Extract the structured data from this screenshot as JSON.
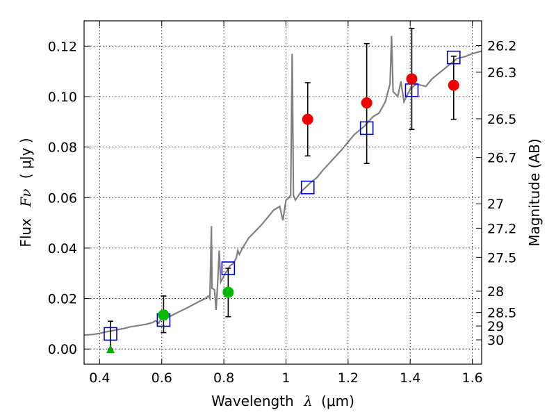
{
  "chart_data": {
    "type": "scatter",
    "xlabel_text": "Wavelength",
    "xlabel_symbol": "λ",
    "xlabel_unit": "(μm)",
    "ylabel_text": "Flux",
    "ylabel_symbol": "Fν",
    "ylabel_unit": "( μJy )",
    "y2label": "Magnitude (AB)",
    "xlim": [
      0.35,
      1.63
    ],
    "ylim": [
      -0.006,
      0.13
    ],
    "grid": true,
    "x_ticks": [
      {
        "value": 0.4,
        "label": "0.4"
      },
      {
        "value": 0.6,
        "label": "0.6"
      },
      {
        "value": 0.8,
        "label": "0.8"
      },
      {
        "value": 1.0,
        "label": "1"
      },
      {
        "value": 1.2,
        "label": "1.2"
      },
      {
        "value": 1.4,
        "label": "1.4"
      },
      {
        "value": 1.6,
        "label": "1.6"
      }
    ],
    "y_ticks": [
      {
        "value": 0.0,
        "label": "0.00"
      },
      {
        "value": 0.02,
        "label": "0.02"
      },
      {
        "value": 0.04,
        "label": "0.04"
      },
      {
        "value": 0.06,
        "label": "0.06"
      },
      {
        "value": 0.08,
        "label": "0.08"
      },
      {
        "value": 0.1,
        "label": "0.10"
      },
      {
        "value": 0.12,
        "label": "0.12"
      }
    ],
    "y2_ticks": [
      {
        "value": 26.2,
        "label": "26.2"
      },
      {
        "value": 26.3,
        "label": "26.3"
      },
      {
        "value": 26.5,
        "label": "26.5"
      },
      {
        "value": 26.7,
        "label": "26.7"
      },
      {
        "value": 27.0,
        "label": "27"
      },
      {
        "value": 27.2,
        "label": "27.2"
      },
      {
        "value": 27.5,
        "label": "27.5"
      },
      {
        "value": 28.0,
        "label": "28"
      },
      {
        "value": 28.5,
        "label": "28.5"
      },
      {
        "value": 29.0,
        "label": "29"
      },
      {
        "value": 30.0,
        "label": "30"
      }
    ],
    "spectrum": {
      "color": "#808080",
      "points": [
        [
          0.35,
          0.0055
        ],
        [
          0.38,
          0.0058
        ],
        [
          0.4,
          0.0062
        ],
        [
          0.42,
          0.0068
        ],
        [
          0.45,
          0.0075
        ],
        [
          0.48,
          0.0082
        ],
        [
          0.5,
          0.0088
        ],
        [
          0.52,
          0.0092
        ],
        [
          0.55,
          0.0098
        ],
        [
          0.57,
          0.0105
        ],
        [
          0.58,
          0.0112
        ],
        [
          0.59,
          0.0103
        ],
        [
          0.6,
          0.0122
        ],
        [
          0.62,
          0.0125
        ],
        [
          0.64,
          0.0138
        ],
        [
          0.66,
          0.015
        ],
        [
          0.68,
          0.0162
        ],
        [
          0.7,
          0.0175
        ],
        [
          0.72,
          0.0188
        ],
        [
          0.74,
          0.02
        ],
        [
          0.75,
          0.021
        ],
        [
          0.755,
          0.02
        ],
        [
          0.76,
          0.0487
        ],
        [
          0.762,
          0.024
        ],
        [
          0.77,
          0.0235
        ],
        [
          0.775,
          0.0155
        ],
        [
          0.78,
          0.026
        ],
        [
          0.785,
          0.039
        ],
        [
          0.79,
          0.0265
        ],
        [
          0.8,
          0.029
        ],
        [
          0.81,
          0.031
        ],
        [
          0.82,
          0.033
        ],
        [
          0.83,
          0.0338
        ],
        [
          0.84,
          0.036
        ],
        [
          0.845,
          0.039
        ],
        [
          0.85,
          0.0375
        ],
        [
          0.86,
          0.04
        ],
        [
          0.87,
          0.042
        ],
        [
          0.88,
          0.044
        ],
        [
          0.9,
          0.0465
        ],
        [
          0.92,
          0.049
        ],
        [
          0.94,
          0.052
        ],
        [
          0.96,
          0.055
        ],
        [
          0.98,
          0.0565
        ],
        [
          0.99,
          0.051
        ],
        [
          1.0,
          0.059
        ],
        [
          1.01,
          0.06
        ],
        [
          1.015,
          0.061
        ],
        [
          1.02,
          0.117
        ],
        [
          1.024,
          0.061
        ],
        [
          1.03,
          0.059
        ],
        [
          1.05,
          0.0625
        ],
        [
          1.08,
          0.066
        ],
        [
          1.1,
          0.068
        ],
        [
          1.12,
          0.071
        ],
        [
          1.15,
          0.075
        ],
        [
          1.18,
          0.079
        ],
        [
          1.2,
          0.082
        ],
        [
          1.22,
          0.085
        ],
        [
          1.25,
          0.088
        ],
        [
          1.28,
          0.092
        ],
        [
          1.3,
          0.0935
        ],
        [
          1.32,
          0.098
        ],
        [
          1.335,
          0.105
        ],
        [
          1.34,
          0.124
        ],
        [
          1.345,
          0.102
        ],
        [
          1.36,
          0.1
        ],
        [
          1.37,
          0.106
        ],
        [
          1.38,
          0.098
        ],
        [
          1.4,
          0.103
        ],
        [
          1.42,
          0.105
        ],
        [
          1.45,
          0.104
        ],
        [
          1.47,
          0.107
        ],
        [
          1.5,
          0.11
        ],
        [
          1.52,
          0.112
        ],
        [
          1.55,
          0.115
        ],
        [
          1.58,
          0.116
        ],
        [
          1.6,
          0.117
        ],
        [
          1.63,
          0.118
        ]
      ]
    },
    "model_points": {
      "marker": "square",
      "color": "#0000cc",
      "points": [
        {
          "x": 0.435,
          "y": 0.006
        },
        {
          "x": 0.606,
          "y": 0.0115
        },
        {
          "x": 0.814,
          "y": 0.032
        },
        {
          "x": 1.07,
          "y": 0.064
        },
        {
          "x": 1.26,
          "y": 0.0875
        },
        {
          "x": 1.405,
          "y": 0.1025
        },
        {
          "x": 1.54,
          "y": 0.1155
        }
      ]
    },
    "measurements": [
      {
        "x": 0.435,
        "y": 0.0,
        "err_lo": 0.0,
        "err_hi": 0.011,
        "marker": "triangle",
        "color": "#00aa00"
      },
      {
        "x": 0.606,
        "y": 0.0135,
        "err_lo": 0.0065,
        "err_hi": 0.021,
        "marker": "circle",
        "color": "#00bb00"
      },
      {
        "x": 0.814,
        "y": 0.0225,
        "err_lo": 0.0128,
        "err_hi": 0.032,
        "marker": "circle",
        "color": "#00bb00"
      },
      {
        "x": 1.07,
        "y": 0.091,
        "err_lo": 0.0765,
        "err_hi": 0.1055,
        "marker": "circle",
        "color": "#ee0000"
      },
      {
        "x": 1.26,
        "y": 0.0975,
        "err_lo": 0.0735,
        "err_hi": 0.121,
        "marker": "circle",
        "color": "#ee0000"
      },
      {
        "x": 1.405,
        "y": 0.107,
        "err_lo": 0.087,
        "err_hi": 0.127,
        "marker": "circle",
        "color": "#ee0000"
      },
      {
        "x": 1.54,
        "y": 0.1045,
        "err_lo": 0.091,
        "err_hi": 0.116,
        "marker": "circle",
        "color": "#ee0000"
      }
    ]
  }
}
